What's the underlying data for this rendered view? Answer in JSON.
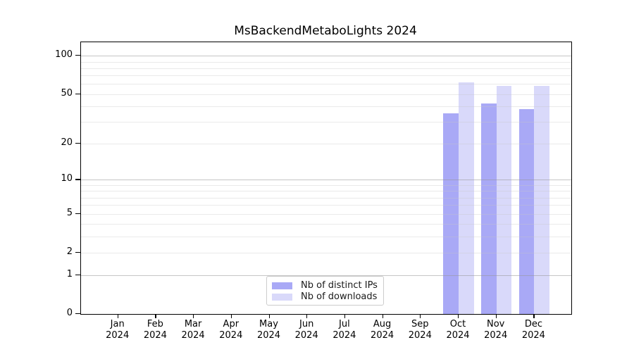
{
  "chart_data": {
    "type": "bar",
    "title": "MsBackendMetaboLights 2024",
    "categories": [
      "Jan 2024",
      "Feb 2024",
      "Mar 2024",
      "Apr 2024",
      "May 2024",
      "Jun 2024",
      "Jul 2024",
      "Aug 2024",
      "Sep 2024",
      "Oct 2024",
      "Nov 2024",
      "Dec 2024"
    ],
    "series": [
      {
        "name": "Nb of distinct IPs",
        "color": "#a9a9f6",
        "values": [
          0,
          0,
          0,
          0,
          0,
          0,
          0,
          0,
          0,
          35,
          42,
          38
        ]
      },
      {
        "name": "Nb of downloads",
        "color": "#d9d9fa",
        "values": [
          0,
          0,
          0,
          0,
          0,
          0,
          0,
          0,
          0,
          62,
          58,
          58
        ]
      }
    ],
    "xlabel": "",
    "ylabel": "",
    "yscale": "symlog (y ~ log10(1+v))",
    "ylim": [
      0,
      128
    ],
    "yticks": [
      0,
      1,
      2,
      5,
      10,
      20,
      50,
      100
    ],
    "minor_grid_values": [
      2,
      3,
      4,
      5,
      6,
      7,
      8,
      9,
      20,
      30,
      40,
      50,
      60,
      70,
      80,
      90
    ],
    "major_grid_values": [
      1,
      10,
      100
    ],
    "grid": "horizontal on, drawn over bars",
    "legend_position": "inside bottom-center"
  },
  "colors": {
    "background": "#ffffff",
    "spine": "#000000",
    "major_grid": "#c6c6c6",
    "minor_grid": "#ebebeb",
    "legend_border": "#cccccc",
    "text": "#000000"
  }
}
